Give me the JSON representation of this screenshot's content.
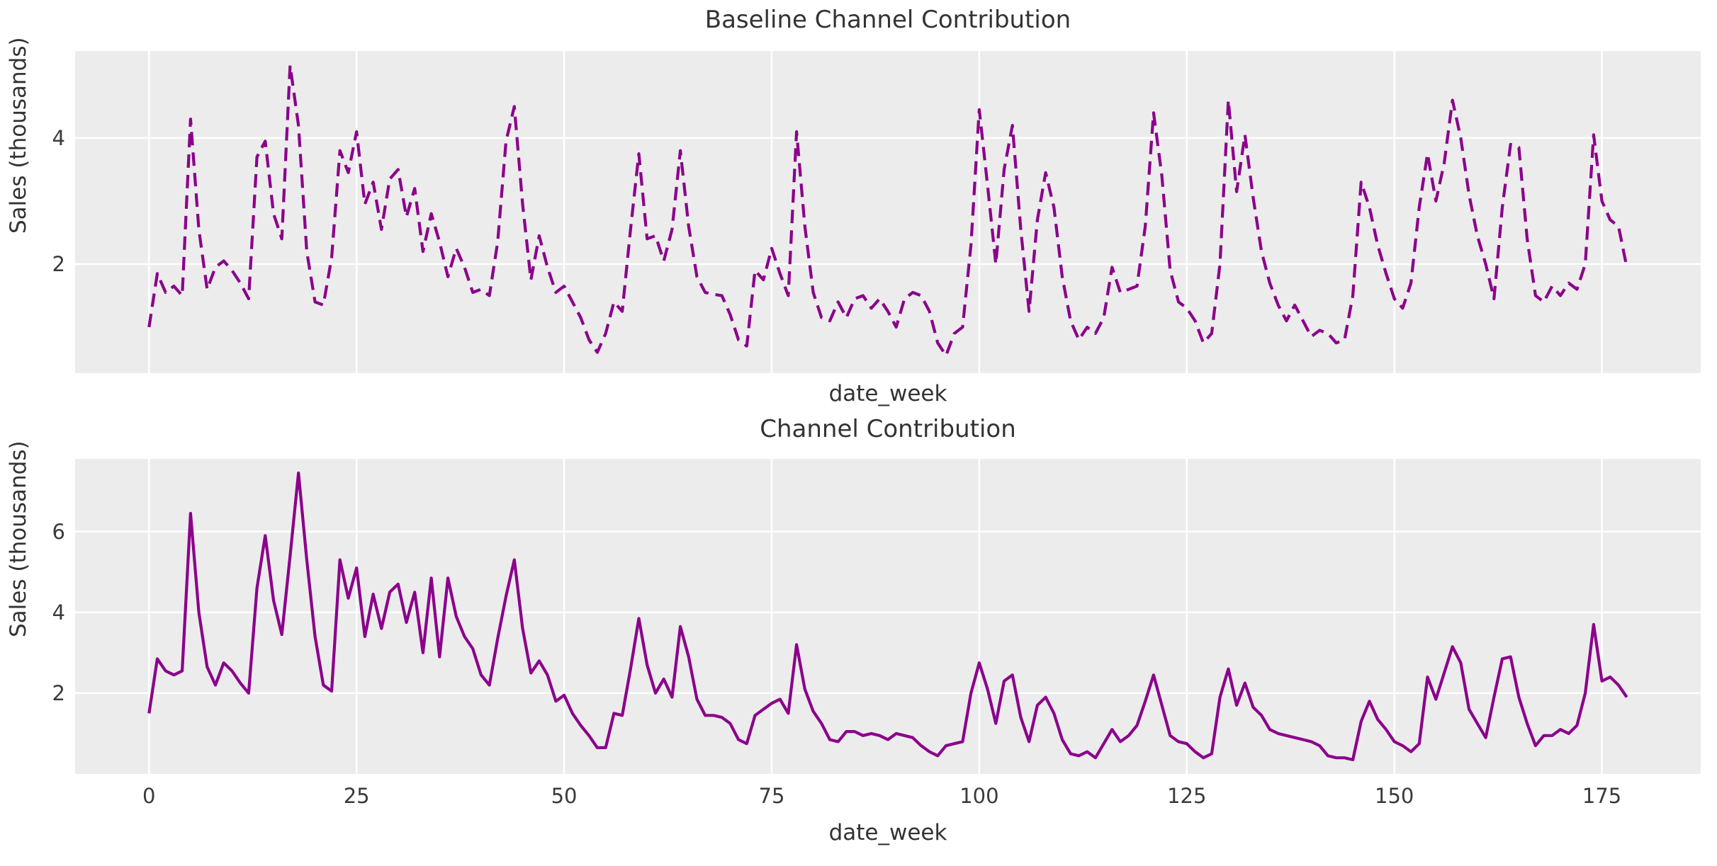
{
  "figure": {
    "background_color": "#ffffff",
    "axes_background_color": "#ececec",
    "grid_color": "#ffffff",
    "line_color": "#8b008b",
    "text_color": "#3a3a3a"
  },
  "chart_data": [
    {
      "type": "line",
      "title": "Baseline Channel Contribution",
      "xlabel": "date_week",
      "ylabel": "Sales (thousands)",
      "line_style": "dashed",
      "legend": "none",
      "grid": true,
      "xlim": [
        -8.9,
        186.9
      ],
      "ylim": [
        0.27,
        5.38
      ],
      "xticks": [
        0,
        25,
        50,
        75,
        100,
        125,
        150,
        175
      ],
      "show_xtick_labels": false,
      "yticks": [
        2,
        4
      ],
      "x_weeks_start": 0,
      "values": [
        1.0,
        1.85,
        1.55,
        1.65,
        1.5,
        4.3,
        2.55,
        1.6,
        1.95,
        2.05,
        1.9,
        1.7,
        1.45,
        3.7,
        3.95,
        2.8,
        2.4,
        5.15,
        4.2,
        2.2,
        1.4,
        1.35,
        2.1,
        3.8,
        3.45,
        4.1,
        2.95,
        3.3,
        2.55,
        3.35,
        3.5,
        2.75,
        3.2,
        2.2,
        2.8,
        2.35,
        1.8,
        2.25,
        1.95,
        1.55,
        1.6,
        1.5,
        2.35,
        3.95,
        4.5,
        2.95,
        1.75,
        2.45,
        1.95,
        1.55,
        1.65,
        1.4,
        1.15,
        0.8,
        0.6,
        0.9,
        1.4,
        1.25,
        2.55,
        3.75,
        2.4,
        2.45,
        2.05,
        2.55,
        3.8,
        2.6,
        1.8,
        1.55,
        1.52,
        1.5,
        1.2,
        0.8,
        0.7,
        1.9,
        1.75,
        2.25,
        1.85,
        1.5,
        4.1,
        2.6,
        1.55,
        1.15,
        1.1,
        1.4,
        1.15,
        1.45,
        1.5,
        1.3,
        1.45,
        1.25,
        1.0,
        1.45,
        1.55,
        1.5,
        1.25,
        0.75,
        0.55,
        0.9,
        1.0,
        2.3,
        4.45,
        3.25,
        2.0,
        3.5,
        4.2,
        2.55,
        1.25,
        2.7,
        3.45,
        2.9,
        1.8,
        1.1,
        0.8,
        1.0,
        0.9,
        1.15,
        1.95,
        1.55,
        1.6,
        1.65,
        2.6,
        4.4,
        3.4,
        1.9,
        1.4,
        1.3,
        1.1,
        0.75,
        0.9,
        2.0,
        4.6,
        3.15,
        4.05,
        3.05,
        2.2,
        1.7,
        1.35,
        1.1,
        1.35,
        1.1,
        0.85,
        0.95,
        0.9,
        0.75,
        0.8,
        1.5,
        3.3,
        2.9,
        2.3,
        1.85,
        1.45,
        1.3,
        1.7,
        2.9,
        3.75,
        3.0,
        3.6,
        4.6,
        4.0,
        3.1,
        2.45,
        2.0,
        1.45,
        2.9,
        3.9,
        3.85,
        2.4,
        1.5,
        1.4,
        1.65,
        1.5,
        1.7,
        1.6,
        2.0,
        4.05,
        3.0,
        2.7,
        2.6,
        1.95
      ]
    },
    {
      "type": "line",
      "title": "Channel Contribution",
      "xlabel": "date_week",
      "ylabel": "Sales (thousands)",
      "line_style": "solid",
      "legend": "none",
      "grid": true,
      "xlim": [
        -8.9,
        186.9
      ],
      "ylim": [
        0.0,
        7.8
      ],
      "xticks": [
        0,
        25,
        50,
        75,
        100,
        125,
        150,
        175
      ],
      "show_xtick_labels": true,
      "yticks": [
        2,
        4,
        6
      ],
      "x_weeks_start": 0,
      "values": [
        1.5,
        2.85,
        2.55,
        2.45,
        2.55,
        6.45,
        4.0,
        2.65,
        2.2,
        2.75,
        2.55,
        2.25,
        2.0,
        4.6,
        5.9,
        4.3,
        3.45,
        5.4,
        7.45,
        5.3,
        3.4,
        2.2,
        2.05,
        5.3,
        4.35,
        5.1,
        3.4,
        4.45,
        3.6,
        4.5,
        4.7,
        3.75,
        4.5,
        3.0,
        4.85,
        2.9,
        4.85,
        3.9,
        3.4,
        3.1,
        2.45,
        2.2,
        3.35,
        4.4,
        5.3,
        3.6,
        2.5,
        2.8,
        2.45,
        1.8,
        1.95,
        1.5,
        1.2,
        0.95,
        0.65,
        0.65,
        1.5,
        1.45,
        2.6,
        3.85,
        2.7,
        2.0,
        2.35,
        1.9,
        3.65,
        2.9,
        1.85,
        1.45,
        1.45,
        1.4,
        1.25,
        0.85,
        0.75,
        1.45,
        1.6,
        1.75,
        1.85,
        1.5,
        3.2,
        2.1,
        1.55,
        1.25,
        0.85,
        0.8,
        1.05,
        1.05,
        0.95,
        1.0,
        0.95,
        0.85,
        1.0,
        0.95,
        0.9,
        0.7,
        0.55,
        0.45,
        0.7,
        0.75,
        0.8,
        2.0,
        2.75,
        2.1,
        1.25,
        2.3,
        2.45,
        1.4,
        0.8,
        1.7,
        1.9,
        1.5,
        0.85,
        0.5,
        0.45,
        0.55,
        0.4,
        0.75,
        1.1,
        0.8,
        0.95,
        1.2,
        1.8,
        2.45,
        1.7,
        0.95,
        0.8,
        0.75,
        0.55,
        0.4,
        0.5,
        1.9,
        2.6,
        1.7,
        2.25,
        1.65,
        1.45,
        1.1,
        1.0,
        0.95,
        0.9,
        0.85,
        0.8,
        0.7,
        0.45,
        0.4,
        0.4,
        0.35,
        1.3,
        1.8,
        1.35,
        1.1,
        0.8,
        0.7,
        0.55,
        0.75,
        2.4,
        1.85,
        2.5,
        3.15,
        2.75,
        1.6,
        1.25,
        0.9,
        1.9,
        2.85,
        2.9,
        1.9,
        1.25,
        0.7,
        0.95,
        0.95,
        1.1,
        1.0,
        1.2,
        2.0,
        3.7,
        2.3,
        2.4,
        2.2,
        1.9
      ]
    }
  ]
}
